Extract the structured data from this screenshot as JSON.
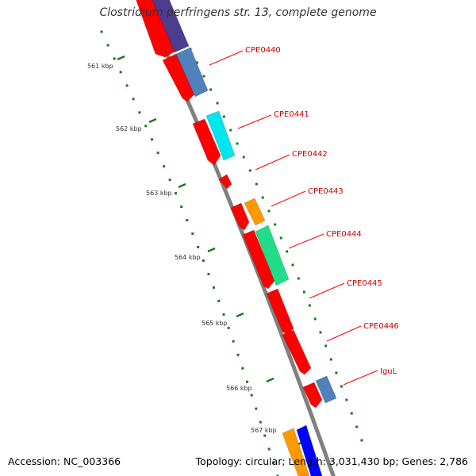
{
  "title": "Clostridium perfringens str. 13, complete genome",
  "accession_text": "Accession: NC_003366",
  "summary_text": "Topology: circular; Length: 3,031,430 bp; Genes: 2,786",
  "ruler": [
    {
      "label": "561 kbp"
    },
    {
      "label": "562 kbp"
    },
    {
      "label": "563 kbp"
    },
    {
      "label": "564 kbp"
    },
    {
      "label": "565 kbp"
    },
    {
      "label": "566 kbp"
    },
    {
      "label": "567 kbp"
    }
  ],
  "gene_labels": [
    "CPE0440",
    "CPE0441",
    "CPE0442",
    "CPE0443",
    "CPE0444",
    "CPE0445",
    "CPE0446",
    "IguL"
  ],
  "colors": {
    "backbone": "#808080",
    "cds": "#ff0000",
    "label": "#cc0000",
    "tick": "#1a7a1a",
    "cog_purple": "#4d3d8f",
    "cog_steelblue": "#4f81bd",
    "cog_cyan": "#00e5ee",
    "cog_orange": "#ff9900",
    "cog_green": "#22dd88",
    "cog_blue": "#0000ff"
  }
}
